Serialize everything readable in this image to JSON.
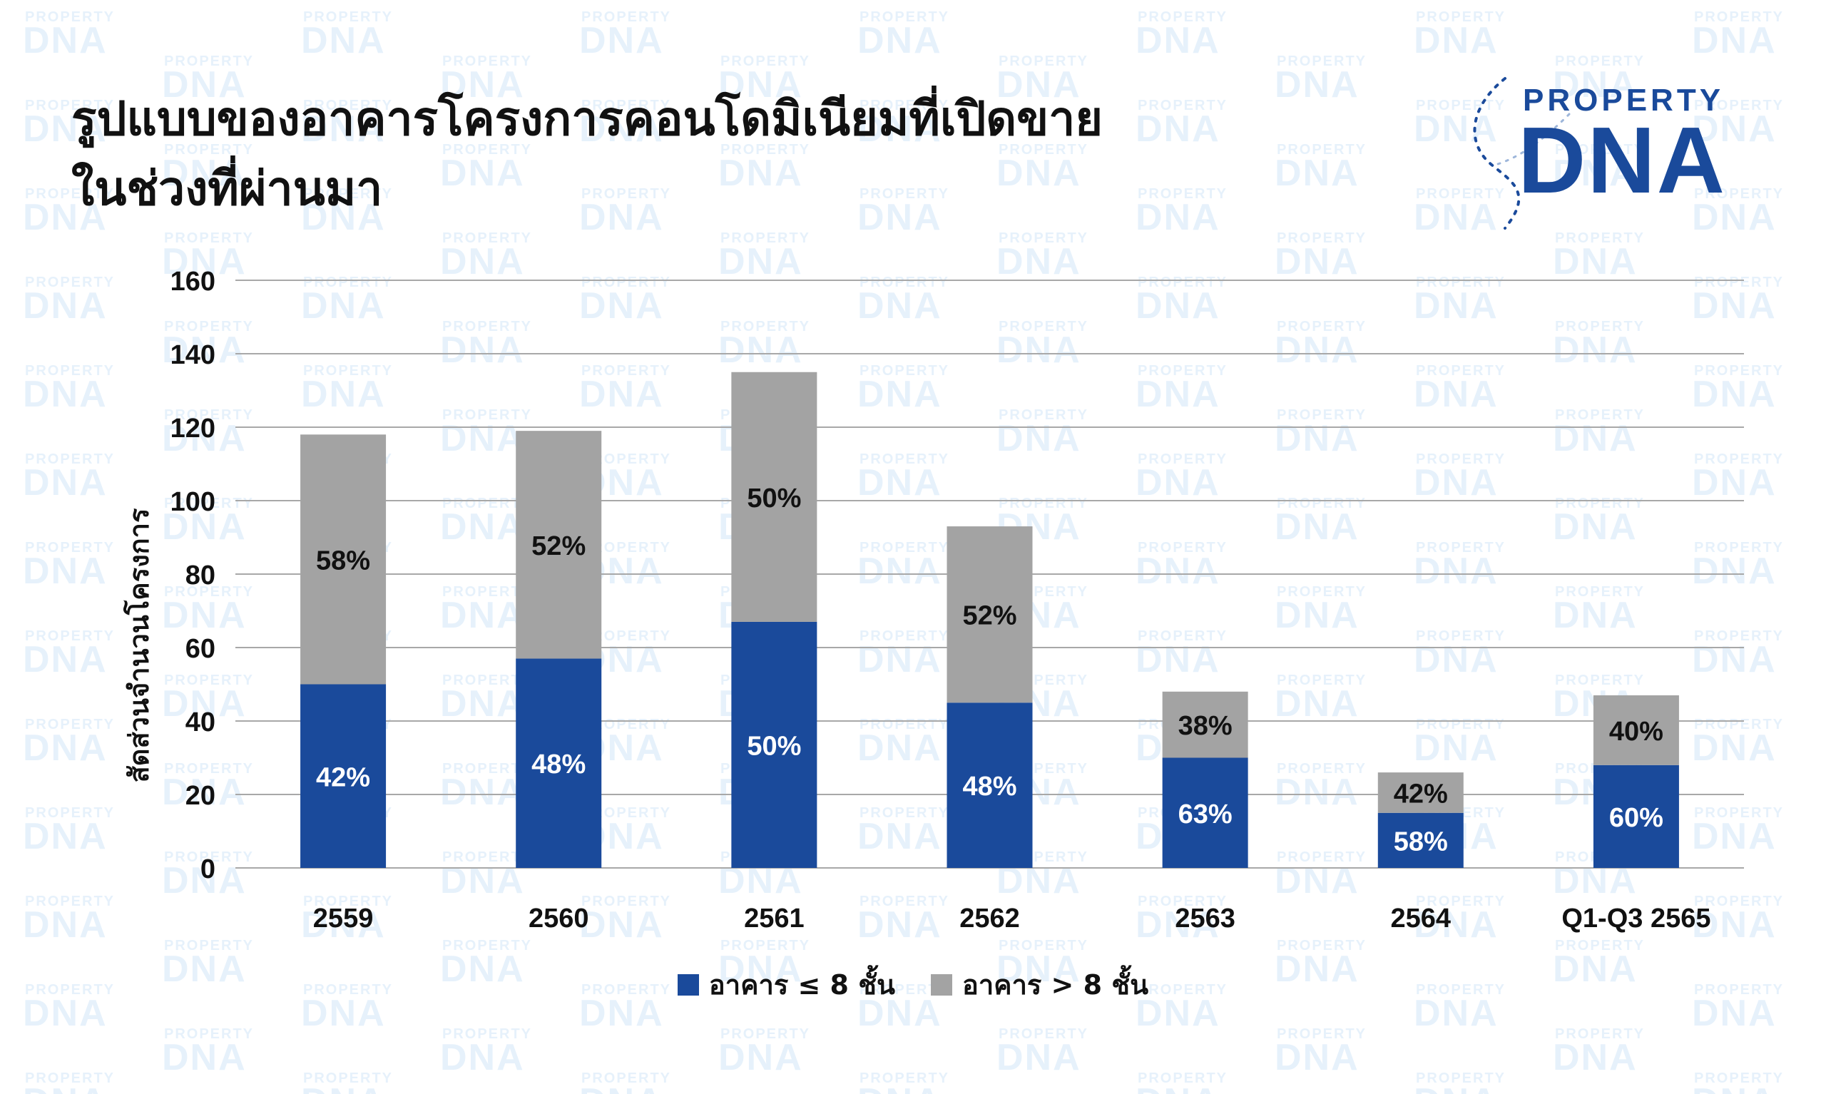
{
  "page": {
    "title_line1": "รูปแบบของอาคารโครงการคอนโดมิเนียมที่เปิดขาย",
    "title_line2": "ในช่วงที่ผ่านมา"
  },
  "logo": {
    "brand_top": "PROPERTY",
    "brand_bottom": "DNA",
    "watermark_top": "PROPERTY",
    "watermark_bottom": "DNA"
  },
  "colors": {
    "low_rise": "#1A4A9B",
    "high_rise": "#A3A3A3",
    "grid": "#A8A8A8",
    "watermark": "#E6F1FB",
    "logo_blue": "#1A4A9B"
  },
  "chart_data": {
    "type": "bar",
    "stacked": true,
    "categories": [
      "2559",
      "2560",
      "2561",
      "2562",
      "2563",
      "2564",
      "Q1-Q3 2565"
    ],
    "ylabel": "สัดส่วนจำนวนโครงการ",
    "xlabel": "",
    "ylim": [
      0,
      160
    ],
    "yticks": [
      0,
      20,
      40,
      60,
      80,
      100,
      120,
      140,
      160
    ],
    "grid": true,
    "legend_position": "bottom",
    "series": [
      {
        "name": "อาคาร ≤ 8 ชั้น",
        "color": "#1A4A9B",
        "values": [
          50,
          57,
          67,
          45,
          30,
          15,
          28
        ],
        "labels": [
          "42%",
          "48%",
          "50%",
          "48%",
          "63%",
          "58%",
          "60%"
        ]
      },
      {
        "name": "อาคาร > 8 ชั้น",
        "color": "#A3A3A3",
        "values": [
          68,
          62,
          68,
          48,
          18,
          11,
          19
        ],
        "labels": [
          "58%",
          "52%",
          "50%",
          "52%",
          "38%",
          "42%",
          "40%"
        ]
      }
    ]
  }
}
